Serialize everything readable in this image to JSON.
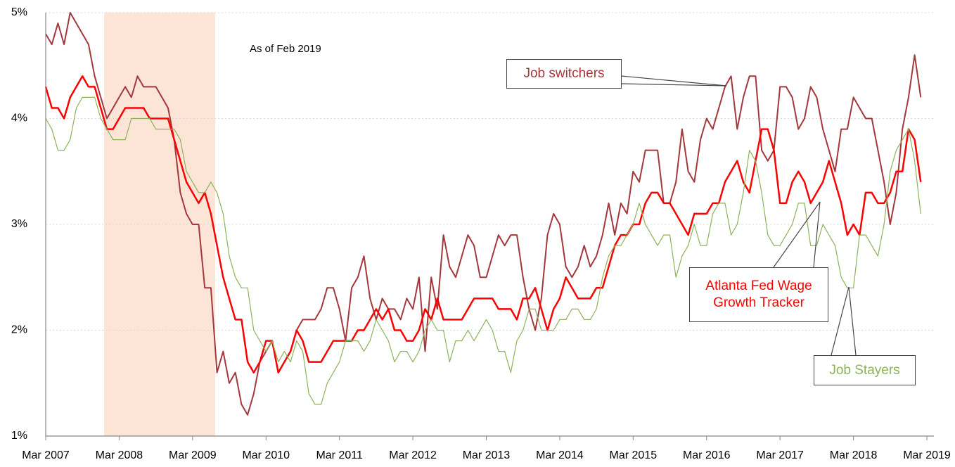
{
  "chart_data": {
    "type": "line",
    "annotation": "As of Feb 2019",
    "categories": [
      "Mar 2007",
      null,
      null,
      null,
      null,
      null,
      null,
      null,
      null,
      null,
      null,
      null,
      "Mar 2008",
      null,
      null,
      null,
      null,
      null,
      null,
      null,
      null,
      null,
      null,
      null,
      "Mar 2009",
      null,
      null,
      null,
      null,
      null,
      null,
      null,
      null,
      null,
      null,
      null,
      "Mar 2010",
      null,
      null,
      null,
      null,
      null,
      null,
      null,
      null,
      null,
      null,
      null,
      "Mar 2011",
      null,
      null,
      null,
      null,
      null,
      null,
      null,
      null,
      null,
      null,
      null,
      "Mar 2012",
      null,
      null,
      null,
      null,
      null,
      null,
      null,
      null,
      null,
      null,
      null,
      "Mar 2013",
      null,
      null,
      null,
      null,
      null,
      null,
      null,
      null,
      null,
      null,
      null,
      "Mar 2014",
      null,
      null,
      null,
      null,
      null,
      null,
      null,
      null,
      null,
      null,
      null,
      "Mar 2015",
      null,
      null,
      null,
      null,
      null,
      null,
      null,
      null,
      null,
      null,
      null,
      "Mar 2016",
      null,
      null,
      null,
      null,
      null,
      null,
      null,
      null,
      null,
      null,
      null,
      "Mar 2017",
      null,
      null,
      null,
      null,
      null,
      null,
      null,
      null,
      null,
      null,
      null,
      "Mar 2018",
      null,
      null,
      null,
      null,
      null,
      null,
      null,
      null,
      null,
      null,
      null,
      "Mar 2019"
    ],
    "series": [
      {
        "name": "Job switchers",
        "color": "#a3383c",
        "width": 2,
        "values": [
          4.8,
          4.7,
          4.9,
          4.7,
          5.0,
          4.9,
          4.8,
          4.7,
          4.4,
          4.2,
          4.0,
          4.1,
          4.2,
          4.3,
          4.2,
          4.4,
          4.3,
          4.3,
          4.3,
          4.2,
          4.1,
          3.8,
          3.3,
          3.1,
          3.0,
          3.0,
          2.4,
          2.4,
          1.6,
          1.8,
          1.5,
          1.6,
          1.3,
          1.2,
          1.4,
          1.7,
          1.8,
          1.9,
          1.6,
          1.7,
          1.8,
          2.0,
          2.1,
          2.1,
          2.1,
          2.2,
          2.4,
          2.4,
          2.2,
          1.9,
          2.4,
          2.5,
          2.7,
          2.3,
          2.1,
          2.3,
          2.2,
          2.2,
          2.1,
          2.3,
          2.2,
          2.5,
          1.8,
          2.5,
          2.2,
          2.9,
          2.6,
          2.5,
          2.7,
          2.9,
          2.8,
          2.5,
          2.5,
          2.7,
          2.9,
          2.8,
          2.9,
          2.9,
          2.5,
          2.2,
          2.0,
          2.3,
          2.9,
          3.1,
          3.0,
          2.6,
          2.5,
          2.6,
          2.8,
          2.6,
          2.7,
          2.9,
          3.2,
          2.9,
          3.2,
          3.1,
          3.5,
          3.4,
          3.7,
          3.7,
          3.7,
          3.2,
          3.2,
          3.4,
          3.9,
          3.5,
          3.4,
          3.8,
          4.0,
          3.9,
          4.1,
          4.3,
          4.4,
          3.9,
          4.2,
          4.4,
          4.4,
          3.7,
          3.6,
          3.7,
          4.3,
          4.3,
          4.2,
          3.9,
          4.0,
          4.3,
          4.2,
          3.9,
          3.7,
          3.5,
          3.9,
          3.9,
          4.2,
          4.1,
          4.0,
          4.0,
          3.7,
          3.4,
          3.0,
          3.3,
          3.9,
          4.2,
          4.6,
          4.2,
          null
        ]
      },
      {
        "name": "Atlanta Fed Wage Growth Tracker",
        "color": "#ff0000",
        "width": 2.5,
        "values": [
          4.3,
          4.1,
          4.1,
          4.0,
          4.2,
          4.3,
          4.4,
          4.3,
          4.3,
          4.1,
          3.9,
          3.9,
          4.0,
          4.1,
          4.1,
          4.1,
          4.1,
          4.0,
          4.0,
          4.0,
          4.0,
          3.8,
          3.6,
          3.4,
          3.3,
          3.2,
          3.3,
          3.1,
          2.8,
          2.5,
          2.3,
          2.1,
          2.1,
          1.7,
          1.6,
          1.7,
          1.9,
          1.9,
          1.6,
          1.7,
          1.8,
          2.0,
          1.9,
          1.7,
          1.7,
          1.7,
          1.8,
          1.9,
          1.9,
          1.9,
          1.9,
          2.0,
          2.0,
          2.1,
          2.2,
          2.1,
          2.2,
          2.0,
          2.0,
          1.9,
          1.9,
          2.0,
          2.2,
          2.1,
          2.3,
          2.1,
          2.1,
          2.1,
          2.1,
          2.2,
          2.3,
          2.3,
          2.3,
          2.3,
          2.2,
          2.2,
          2.2,
          2.1,
          2.3,
          2.3,
          2.4,
          2.2,
          2.0,
          2.2,
          2.3,
          2.5,
          2.4,
          2.3,
          2.3,
          2.3,
          2.4,
          2.4,
          2.6,
          2.8,
          2.9,
          2.9,
          3.0,
          3.0,
          3.2,
          3.3,
          3.3,
          3.2,
          3.2,
          3.1,
          3.0,
          2.9,
          3.1,
          3.1,
          3.1,
          3.2,
          3.2,
          3.4,
          3.5,
          3.6,
          3.4,
          3.3,
          3.6,
          3.9,
          3.9,
          3.7,
          3.2,
          3.2,
          3.4,
          3.5,
          3.4,
          3.2,
          3.3,
          3.4,
          3.6,
          3.4,
          3.2,
          2.9,
          3.0,
          2.9,
          3.3,
          3.3,
          3.2,
          3.2,
          3.3,
          3.5,
          3.5,
          3.9,
          3.8,
          3.4,
          null
        ]
      },
      {
        "name": "Job Stayers",
        "color": "#8db25a",
        "width": 1.2,
        "values": [
          4.0,
          3.9,
          3.7,
          3.7,
          3.8,
          4.1,
          4.2,
          4.2,
          4.2,
          4.0,
          3.9,
          3.8,
          3.8,
          3.8,
          4.0,
          4.0,
          4.0,
          4.0,
          3.9,
          3.9,
          3.9,
          3.9,
          3.8,
          3.5,
          3.4,
          3.3,
          3.3,
          3.4,
          3.3,
          3.1,
          2.7,
          2.5,
          2.4,
          2.4,
          2.0,
          1.9,
          1.8,
          1.9,
          1.7,
          1.8,
          1.7,
          1.9,
          1.8,
          1.4,
          1.3,
          1.3,
          1.5,
          1.6,
          1.7,
          1.9,
          1.9,
          1.9,
          1.8,
          1.9,
          2.1,
          2.0,
          1.9,
          1.7,
          1.8,
          1.8,
          1.7,
          1.8,
          2.0,
          2.1,
          2.0,
          2.0,
          1.7,
          1.9,
          1.9,
          2.0,
          1.9,
          2.0,
          2.1,
          2.0,
          1.8,
          1.8,
          1.6,
          1.9,
          2.0,
          2.2,
          2.2,
          2.0,
          2.0,
          2.0,
          2.1,
          2.1,
          2.2,
          2.2,
          2.1,
          2.1,
          2.2,
          2.5,
          2.7,
          2.8,
          2.8,
          2.9,
          3.0,
          3.2,
          3.0,
          2.9,
          2.8,
          2.9,
          2.9,
          2.5,
          2.7,
          2.8,
          3.0,
          2.8,
          2.8,
          3.1,
          3.2,
          3.2,
          2.9,
          3.0,
          3.3,
          3.7,
          3.6,
          3.3,
          2.9,
          2.8,
          2.8,
          2.9,
          3.0,
          3.2,
          3.2,
          2.8,
          2.8,
          3.0,
          2.9,
          2.8,
          2.5,
          2.4,
          2.4,
          2.9,
          2.9,
          2.8,
          2.7,
          3.0,
          3.5,
          3.7,
          3.8,
          3.9,
          3.6,
          3.1,
          null
        ]
      }
    ],
    "ylim": [
      1,
      5
    ],
    "yticks": [
      {
        "value": 1,
        "label": "1%"
      },
      {
        "value": 2,
        "label": "2%"
      },
      {
        "value": 3,
        "label": "3%"
      },
      {
        "value": 4,
        "label": "4%"
      },
      {
        "value": 5,
        "label": "5%"
      }
    ],
    "grid": true
  }
}
